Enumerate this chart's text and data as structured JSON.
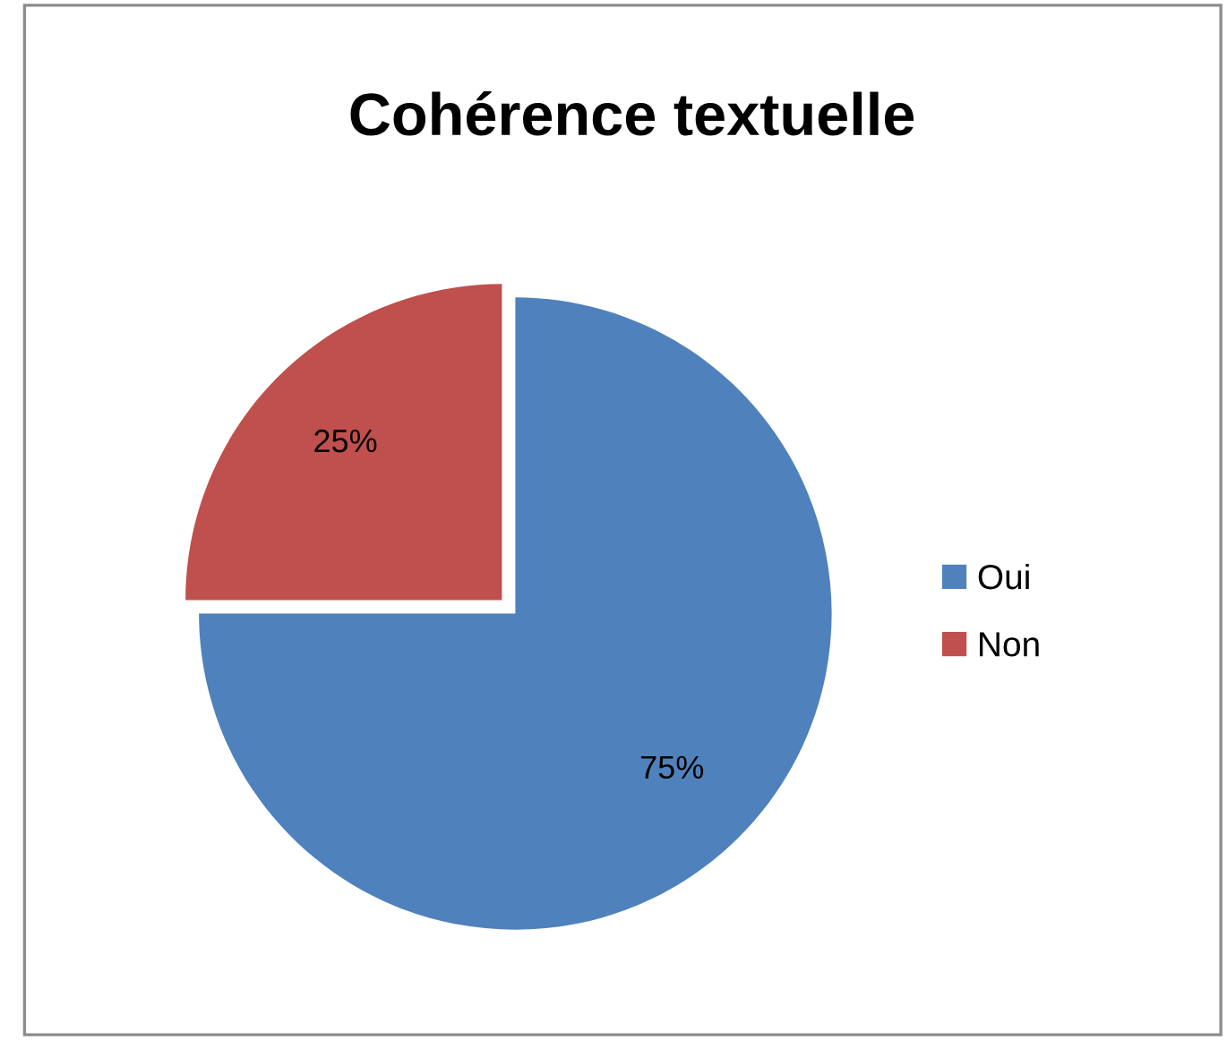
{
  "chart_data": {
    "type": "pie",
    "title": "Cohérence textuelle",
    "categories": [
      "Oui",
      "Non"
    ],
    "values": [
      75,
      25
    ],
    "colors": [
      "#4f81bd",
      "#c0504d"
    ],
    "value_labels": [
      "75%",
      "25%"
    ],
    "legend": "right"
  }
}
